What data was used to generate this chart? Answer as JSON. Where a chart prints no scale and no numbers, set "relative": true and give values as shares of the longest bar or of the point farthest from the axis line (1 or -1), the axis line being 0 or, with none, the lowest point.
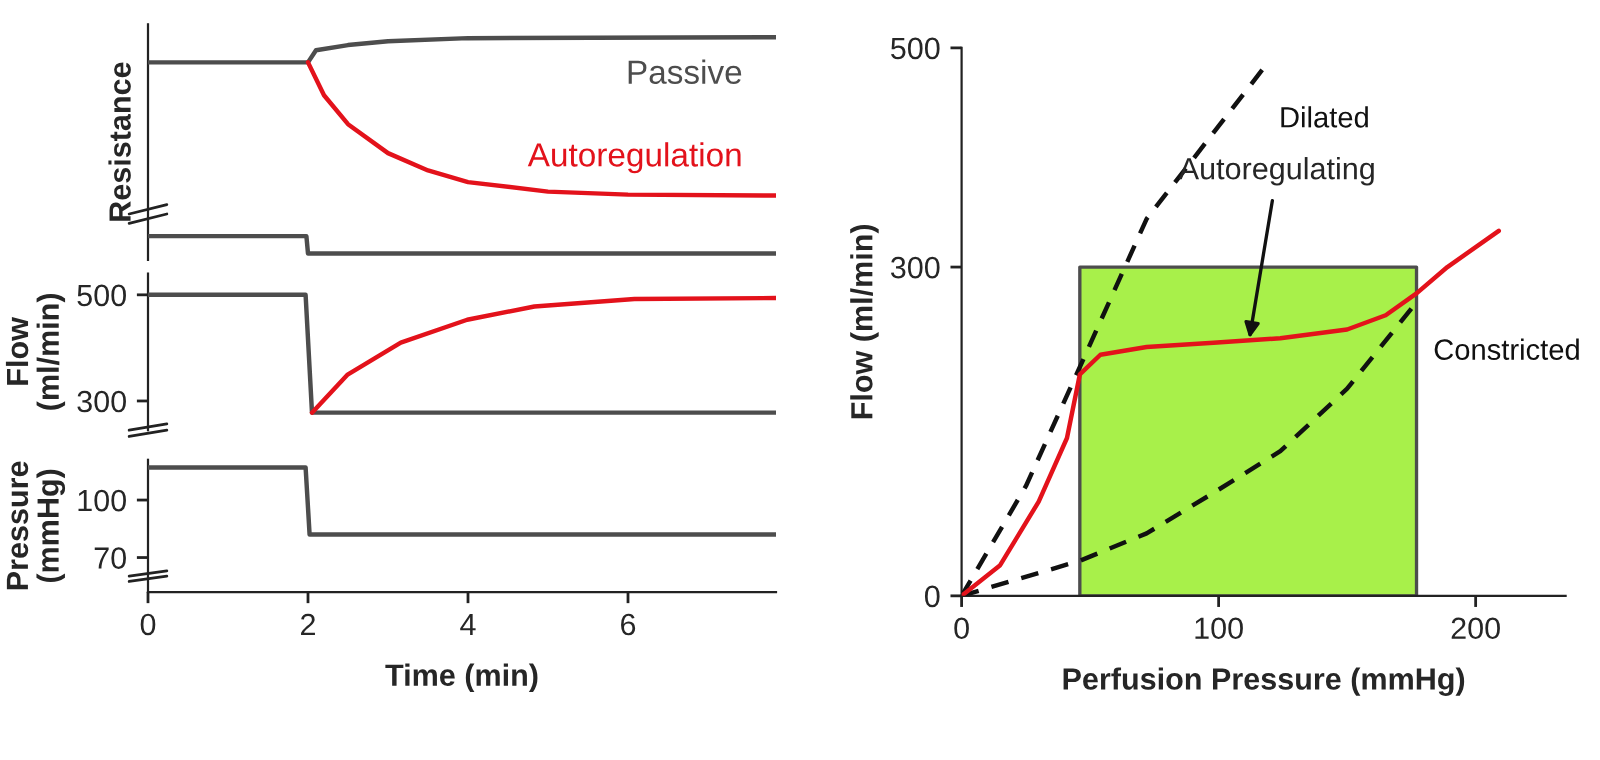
{
  "chart_data": [
    {
      "type": "line",
      "ylabel": "Resistance",
      "relative": true,
      "tick_labels": false,
      "xlim": [
        0,
        7.85
      ],
      "grid": false,
      "legend": false,
      "series": [
        {
          "name": "Passive",
          "color": "#4d4d4d",
          "x": [
            0,
            2,
            2.1,
            2.5,
            3,
            4,
            7.85
          ],
          "values": [
            0.884,
            0.884,
            0.94,
            0.964,
            0.982,
            0.996,
            1
          ]
        },
        {
          "name": "Autoregulation",
          "color": "#e3121b",
          "x": [
            2,
            2.2,
            2.5,
            3,
            3.5,
            4,
            5,
            6,
            7.85
          ],
          "values": [
            0.884,
            0.732,
            0.598,
            0.464,
            0.384,
            0.33,
            0.286,
            0.272,
            0.268
          ]
        },
        {
          "color": "#4d4d4d",
          "x": [
            0,
            1.98,
            2.0,
            7.85
          ],
          "values": [
            0.08,
            0.08,
            0,
            0
          ]
        }
      ]
    },
    {
      "type": "line",
      "ylabel": "Flow\n(ml/min)",
      "tick_labels": "y",
      "xlim": [
        0,
        7.85
      ],
      "ylim": [
        245,
        540
      ],
      "yticks": [
        300,
        500
      ],
      "grid": false,
      "legend": false,
      "series": [
        {
          "color": "#4d4d4d",
          "x": [
            0,
            1.97,
            2.05,
            7.85
          ],
          "values": [
            500,
            500,
            278,
            278
          ]
        },
        {
          "color": "#e3121b",
          "x": [
            2.05,
            2.49,
            3.16,
            3.99,
            4.83,
            6.08,
            7.85
          ],
          "values": [
            278,
            349,
            410,
            453,
            478,
            492,
            494
          ]
        }
      ]
    },
    {
      "type": "line",
      "ylabel": "Pressure\n(mmHg)",
      "xlabel": "Time (min)",
      "xlim": [
        0,
        7.85
      ],
      "xticks": [
        0,
        2,
        4,
        6
      ],
      "ylim": [
        52,
        121
      ],
      "yticks": [
        70,
        100
      ],
      "grid": false,
      "legend": false,
      "series": [
        {
          "color": "#4d4d4d",
          "x": [
            0,
            1.97,
            2.02,
            7.85
          ],
          "values": [
            117,
            117,
            82,
            82
          ]
        }
      ]
    },
    {
      "type": "line",
      "xlabel": "Perfusion Pressure (mmHg)",
      "ylabel": "Flow (ml/min)",
      "xlim": [
        0,
        235
      ],
      "xticks": [
        0,
        100,
        200
      ],
      "ylim": [
        0,
        500
      ],
      "yticks": [
        0,
        300,
        500
      ],
      "grid": false,
      "legend": false,
      "annotations": [
        {
          "text": "Autoregulating",
          "x": 112,
          "y": 235
        }
      ],
      "series": [
        {
          "type": "area",
          "color": "#a8f04a",
          "x": [
            46,
            177
          ],
          "values": [
            300,
            300
          ]
        },
        {
          "name": "Dilated",
          "color": "#111111",
          "line_style": "dashed",
          "x": [
            0,
            25,
            47,
            72,
            117
          ],
          "values": [
            0,
            100,
            214,
            344,
            480
          ]
        },
        {
          "name": "Constricted",
          "color": "#111111",
          "line_style": "dashed",
          "x": [
            0,
            46,
            72,
            98,
            124,
            150,
            177
          ],
          "values": [
            0,
            32,
            57,
            94,
            132,
            189,
            268
          ]
        },
        {
          "color": "#e3121b",
          "x": [
            0,
            15,
            30,
            41,
            46,
            54,
            72,
            98,
            124,
            150,
            165,
            177,
            189,
            209
          ],
          "values": [
            0,
            28,
            86,
            144,
            202,
            220,
            227,
            231,
            235,
            243,
            256,
            276,
            300,
            333
          ]
        }
      ]
    }
  ]
}
